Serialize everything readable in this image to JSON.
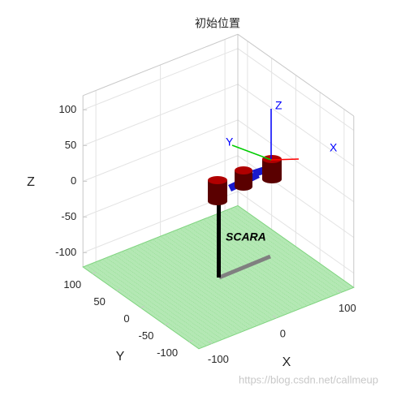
{
  "chart_data": {
    "type": "robot3d",
    "title": "初始位置",
    "xlabel": "X",
    "ylabel": "Y",
    "zlabel": "Z",
    "xlim": [
      -120,
      120
    ],
    "ylim": [
      -120,
      120
    ],
    "zlim": [
      -120,
      120
    ],
    "xticks": [
      -100,
      0,
      100
    ],
    "yticks": [
      -100,
      -50,
      0,
      50,
      100
    ],
    "zticks": [
      -100,
      -50,
      0,
      50,
      100
    ],
    "grid": true,
    "annotation": "SCARA",
    "frame_labels": {
      "x": "X",
      "y": "Y",
      "z": "Z"
    },
    "watermark": "https://blog.csdn.net/callmeup"
  }
}
